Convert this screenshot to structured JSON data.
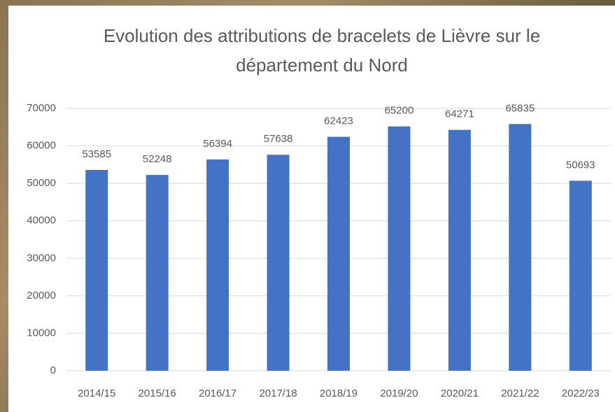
{
  "chart_data": {
    "type": "bar",
    "title": "Evolution des attributions de bracelets de Lièvre sur le département du Nord",
    "categories": [
      "2014/15",
      "2015/16",
      "2016/17",
      "2017/18",
      "2018/19",
      "2019/20",
      "2020/21",
      "2021/22",
      "2022/23"
    ],
    "values": [
      53585,
      52248,
      56394,
      57638,
      62423,
      65200,
      64271,
      65835,
      50693
    ],
    "color": "#4472c4",
    "ylim": [
      0,
      70000
    ],
    "yticks": [
      0,
      10000,
      20000,
      30000,
      40000,
      50000,
      60000,
      70000
    ],
    "grid": true
  }
}
